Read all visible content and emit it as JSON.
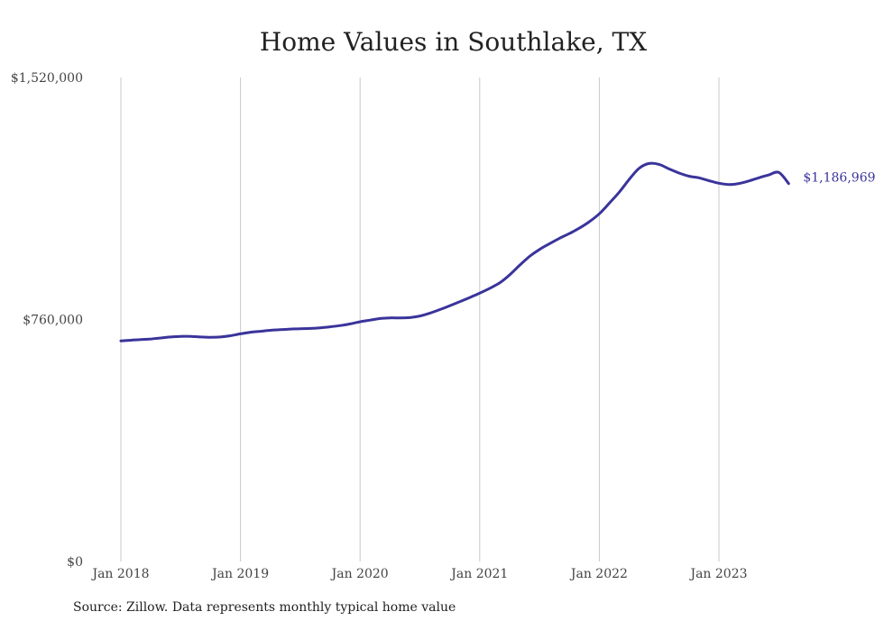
{
  "chart_data": {
    "type": "line",
    "title": "Home Values in Southlake, TX",
    "source": "Source: Zillow. Data represents monthly typical home value",
    "xlabel": "",
    "ylabel": "",
    "ylim": [
      0,
      1520000
    ],
    "y_ticks": [
      {
        "value": 0,
        "label": "$0"
      },
      {
        "value": 760000,
        "label": "$760,000"
      },
      {
        "value": 1520000,
        "label": "$1,520,000"
      }
    ],
    "x_ticks": [
      {
        "date": "2018-01",
        "label": "Jan 2018"
      },
      {
        "date": "2019-01",
        "label": "Jan 2019"
      },
      {
        "date": "2020-01",
        "label": "Jan 2020"
      },
      {
        "date": "2021-01",
        "label": "Jan 2021"
      },
      {
        "date": "2022-01",
        "label": "Jan 2022"
      },
      {
        "date": "2023-01",
        "label": "Jan 2023"
      }
    ],
    "grid": "vertical",
    "line_color": "#3a349b",
    "end_label": "$1,186,969",
    "series": [
      {
        "x": [
          "2018-01",
          "2018-02",
          "2018-03",
          "2018-04",
          "2018-05",
          "2018-06",
          "2018-07",
          "2018-08",
          "2018-09",
          "2018-10",
          "2018-11",
          "2018-12",
          "2019-01",
          "2019-02",
          "2019-03",
          "2019-04",
          "2019-05",
          "2019-06",
          "2019-07",
          "2019-08",
          "2019-09",
          "2019-10",
          "2019-11",
          "2019-12",
          "2020-01",
          "2020-02",
          "2020-03",
          "2020-04",
          "2020-05",
          "2020-06",
          "2020-07",
          "2020-08",
          "2020-09",
          "2020-10",
          "2020-11",
          "2020-12",
          "2021-01",
          "2021-02",
          "2021-03",
          "2021-04",
          "2021-05",
          "2021-06",
          "2021-07",
          "2021-08",
          "2021-09",
          "2021-10",
          "2021-11",
          "2021-12",
          "2022-01",
          "2022-02",
          "2022-03",
          "2022-04",
          "2022-05",
          "2022-06",
          "2022-07",
          "2022-08",
          "2022-09",
          "2022-10",
          "2022-11",
          "2022-12",
          "2023-01",
          "2023-02",
          "2023-03",
          "2023-04",
          "2023-05",
          "2023-06",
          "2023-07",
          "2023-08"
        ],
        "values": [
          693000,
          695000,
          697000,
          699000,
          702000,
          705000,
          707000,
          707000,
          705000,
          704000,
          705000,
          709000,
          715000,
          720000,
          723000,
          726000,
          728000,
          730000,
          731000,
          732000,
          734000,
          737000,
          741000,
          746000,
          753000,
          758000,
          763000,
          765000,
          765000,
          766000,
          771000,
          780000,
          791000,
          803000,
          816000,
          829000,
          843000,
          858000,
          875000,
          900000,
          930000,
          958000,
          980000,
          998000,
          1015000,
          1030000,
          1047000,
          1067000,
          1092000,
          1125000,
          1160000,
          1200000,
          1235000,
          1250000,
          1247000,
          1233000,
          1220000,
          1210000,
          1205000,
          1196000,
          1188000,
          1184000,
          1187000,
          1195000,
          1205000,
          1214000,
          1222000,
          1186969
        ]
      }
    ]
  }
}
